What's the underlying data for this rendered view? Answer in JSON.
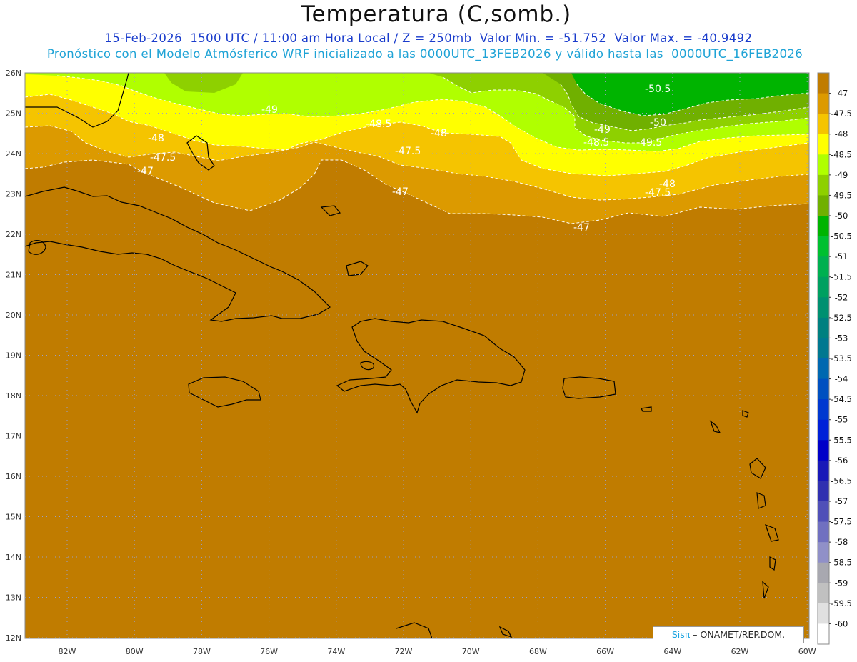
{
  "header": {
    "title": "Temperatura (C,somb.)",
    "line1": "15-Feb-2026  1500 UTC / 11:00 am Hora Local / Z = 250mb  Valor Min. = -51.752  Valor Max. = -40.9492",
    "line2": "Pronóstico con el Modelo Atmósferico WRF inicializado a las 0000UTC_13FEB2026 y válido hasta las  0000UTC_16FEB2026"
  },
  "axes": {
    "lat_labels": [
      "26N",
      "25N",
      "24N",
      "23N",
      "22N",
      "21N",
      "20N",
      "19N",
      "18N",
      "17N",
      "16N",
      "15N",
      "14N",
      "13N",
      "12N"
    ],
    "lon_labels": [
      "82W",
      "80W",
      "78W",
      "76W",
      "74W",
      "72W",
      "70W",
      "68W",
      "66W",
      "64W",
      "62W",
      "60W"
    ]
  },
  "colorbar": {
    "labels": [
      "-47",
      "-47.5",
      "-48",
      "-48.5",
      "-49",
      "-49.5",
      "-50",
      "-50.5",
      "-51",
      "-51.5",
      "-52",
      "-52.5",
      "-53",
      "-53.5",
      "-54",
      "-54.5",
      "-55",
      "-55.5",
      "-56",
      "-56.5",
      "-57",
      "-57.5",
      "-58",
      "-58.5",
      "-59",
      "-59.5",
      "-60"
    ],
    "colors": [
      "#c07c00",
      "#dc9a00",
      "#f5c400",
      "#ffff00",
      "#b0ff00",
      "#8ed000",
      "#70b000",
      "#00b400",
      "#00c030",
      "#00b050",
      "#00a060",
      "#009070",
      "#008080",
      "#007890",
      "#0068b0",
      "#0050c0",
      "#0038d0",
      "#0020d8",
      "#0000c8",
      "#1818b8",
      "#3030b0",
      "#5050b8",
      "#7070c0",
      "#9090c8",
      "#a8a8b0",
      "#c0c0c0",
      "#e0e0e0",
      "#ffffff"
    ]
  },
  "contour_labels": [
    "-50.5",
    "-49",
    "-48.5",
    "-48",
    "-49",
    "-50",
    "-48.5",
    "-49.5",
    "-48",
    "-47.5",
    "-48",
    "-47.5",
    "-47",
    "-47.5",
    "-47",
    "-47"
  ],
  "credit": {
    "brand": "Sisπ",
    "text": "– ONAMET/REP.DOM."
  }
}
